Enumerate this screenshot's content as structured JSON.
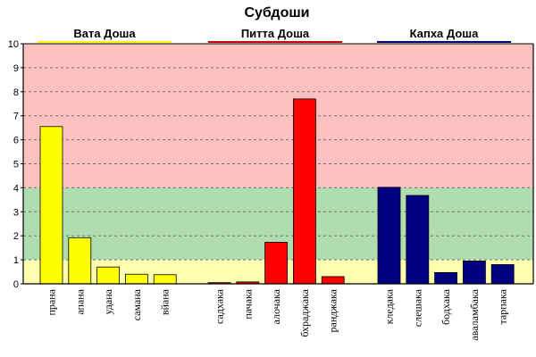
{
  "chart_data": {
    "type": "bar",
    "title": "Субдоши",
    "xlabel": "",
    "ylabel": "",
    "ylim": [
      0,
      10
    ],
    "y_ticks": [
      0,
      1,
      2,
      3,
      4,
      5,
      6,
      7,
      8,
      9,
      10
    ],
    "grid": "horizontal-dashed",
    "bands": [
      {
        "from": 0,
        "to": 1,
        "color": "#FFFFB0"
      },
      {
        "from": 1,
        "to": 4,
        "color": "#B0DDB0"
      },
      {
        "from": 4,
        "to": 10,
        "color": "#FFC0C0"
      }
    ],
    "groups": [
      {
        "name": "Вата Доша",
        "color": "#FFFF00",
        "line_color": "#FFFF00",
        "categories": [
          "прана",
          "апана",
          "удана",
          "самана",
          "вйана"
        ],
        "values": [
          6.55,
          1.92,
          0.7,
          0.4,
          0.38
        ]
      },
      {
        "name": "Питта Доша",
        "color": "#FF0000",
        "line_color": "#CC0000",
        "categories": [
          "садхака",
          "пачака",
          "алочака",
          "бхраджака",
          "ранджака"
        ],
        "values": [
          0.05,
          0.08,
          1.73,
          7.7,
          0.3
        ]
      },
      {
        "name": "Капха Доша",
        "color": "#000080",
        "line_color": "#000080",
        "categories": [
          "кледака",
          "слешака",
          "бодхака",
          "аваламбака",
          "тарпака"
        ],
        "values": [
          4.02,
          3.68,
          0.47,
          0.95,
          0.8
        ]
      }
    ]
  }
}
